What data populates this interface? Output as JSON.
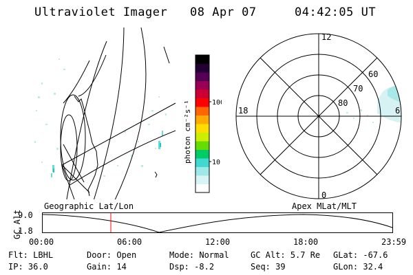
{
  "header": {
    "instrument": "Ultraviolet Imager",
    "date": "08 Apr 07",
    "time": "04:42:05 UT"
  },
  "colorbar": {
    "unit_label": "photon cm⁻²s⁻¹",
    "ticks": [
      "100",
      "10"
    ],
    "colors": [
      "#ffffff",
      "#d8f4f4",
      "#9fe8e8",
      "#40d8d0",
      "#00cc66",
      "#66dd00",
      "#ccee00",
      "#ffdd00",
      "#ffaa00",
      "#ff6600",
      "#ff0000",
      "#cc0033",
      "#990055",
      "#550055",
      "#220033",
      "#000000"
    ]
  },
  "polar_plot": {
    "mlt_labels": [
      "12",
      "18",
      "6",
      "0"
    ],
    "lat_labels": [
      "60",
      "70",
      "80"
    ]
  },
  "labels": {
    "left_map": "Geographic Lat/Lon",
    "right_map": "Apex MLat/MLT"
  },
  "altitude_panel": {
    "axis_label": "GC Alt",
    "ymax": "9.0",
    "ymin": "1.8",
    "times": [
      "00:00",
      "06:00",
      "12:00",
      "18:00",
      "23:59"
    ],
    "marker_time": "04:42",
    "marker_color": "#ff0000"
  },
  "info": {
    "row1": [
      {
        "k": "Flt:",
        "v": "LBHL"
      },
      {
        "k": "Door:",
        "v": "Open"
      },
      {
        "k": "Mode:",
        "v": "Normal"
      },
      {
        "k": "GC Alt:",
        "v": "5.7 Re"
      },
      {
        "k": "GLat:",
        "v": "-67.6"
      }
    ],
    "row2": [
      {
        "k": "IP:",
        "v": "36.0"
      },
      {
        "k": "Gain:",
        "v": "14"
      },
      {
        "k": "Dsp:",
        "v": "-8.2"
      },
      {
        "k": "Seq:",
        "v": "39"
      },
      {
        "k": "GLon:",
        "v": "32.4"
      }
    ]
  }
}
